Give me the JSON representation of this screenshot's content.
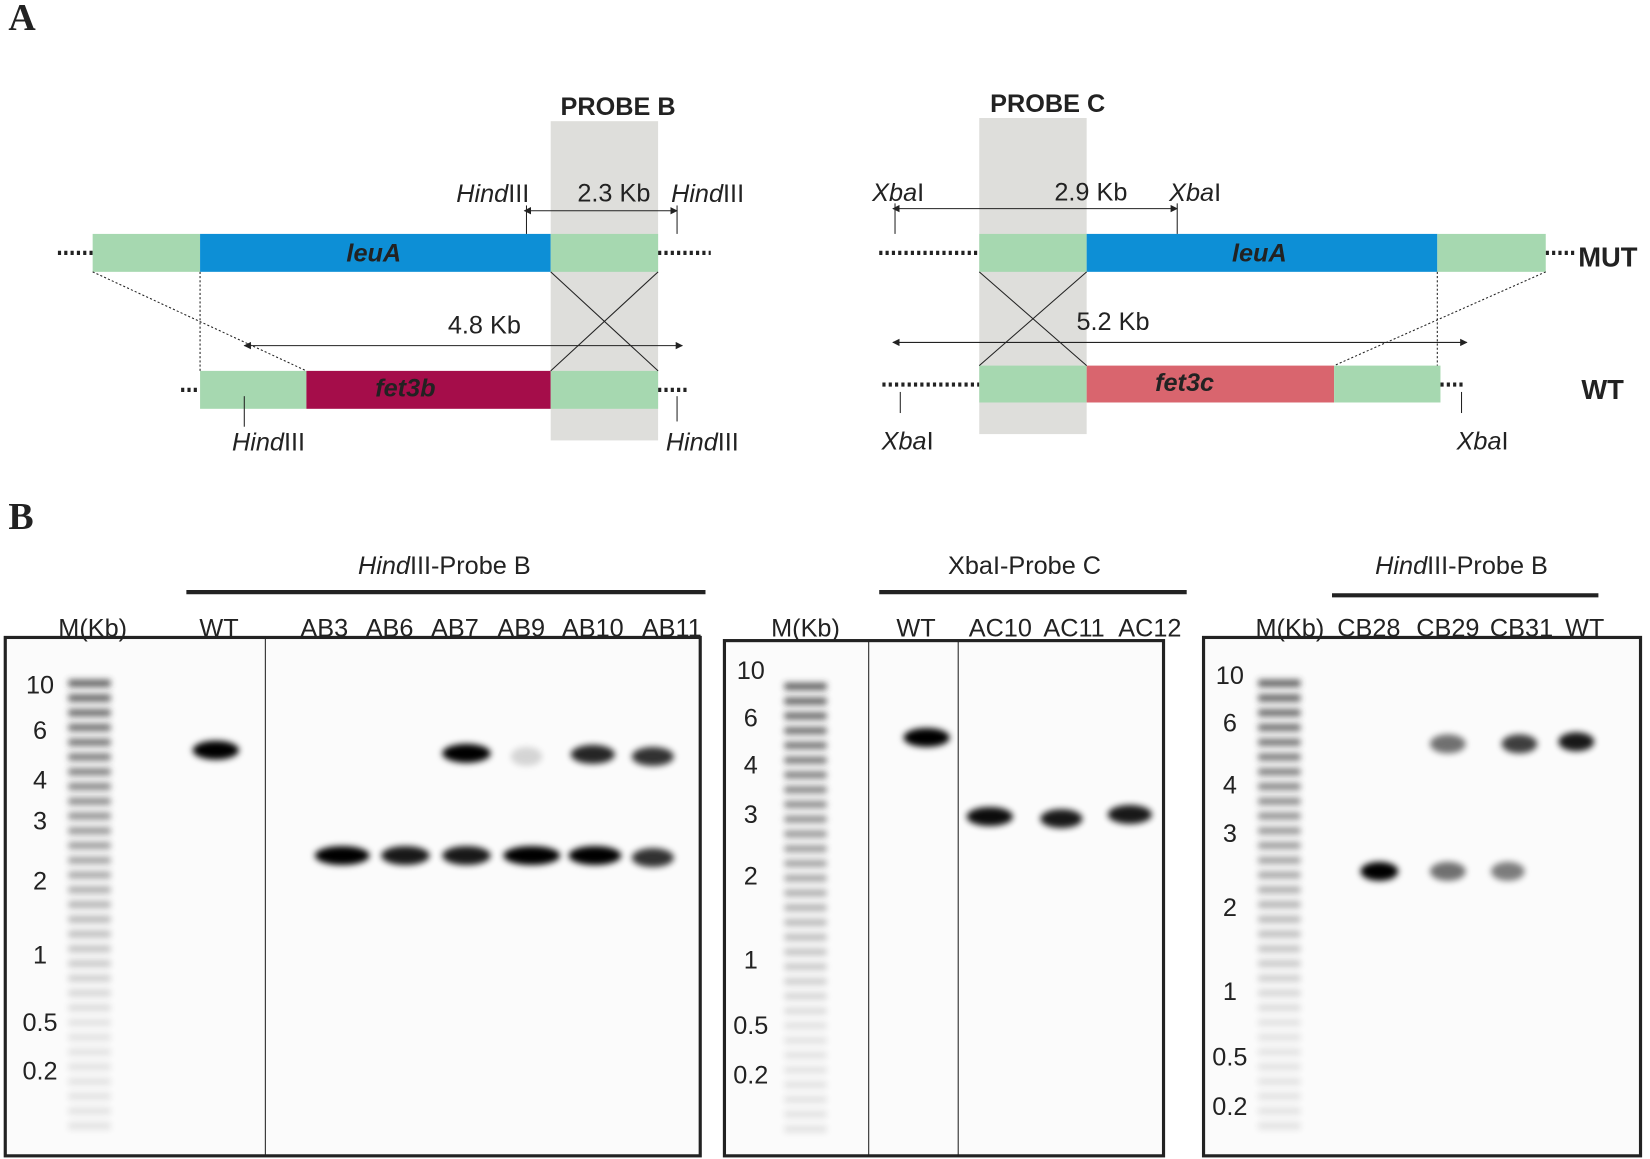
{
  "panel_a": {
    "label": "A",
    "left": {
      "probe": "PROBE B",
      "site": [
        "Hind",
        "III"
      ],
      "short_size": "2.3 Kb",
      "long_size": "4.8 Kb",
      "gene_mut": "leuA",
      "gene_wt": "fet3b"
    },
    "right": {
      "probe": "PROBE C",
      "site": [
        "Xba",
        "I"
      ],
      "short_size": "2.9 Kb",
      "long_size": "5.2 Kb",
      "gene_mut": "leuA",
      "gene_wt": "fet3c"
    },
    "row_labels": [
      "MUT",
      "WT"
    ]
  },
  "panel_b": {
    "label": "B",
    "blots": [
      {
        "title": [
          "Hind",
          "III-Probe B"
        ],
        "marker_header": "M(Kb)",
        "lanes": [
          "WT",
          "AB3",
          "AB6",
          "AB7",
          "AB9",
          "AB10",
          "AB11"
        ],
        "marker_ticks": [
          "10",
          "6",
          "4",
          "3",
          "2",
          "1",
          "0.5",
          "0.2"
        ]
      },
      {
        "title": [
          "XbaI-Probe C"
        ],
        "marker_header": "M(Kb)",
        "lanes": [
          "WT",
          "AC10",
          "AC11",
          "AC12"
        ],
        "marker_ticks": [
          "10",
          "6",
          "4",
          "3",
          "2",
          "1",
          "0.5",
          "0.2"
        ]
      },
      {
        "title": [
          "Hind",
          "III-Probe B"
        ],
        "marker_header": "M(Kb)",
        "lanes": [
          "CB28",
          "CB29",
          "CB31",
          "WT"
        ],
        "marker_ticks": [
          "10",
          "6",
          "4",
          "3",
          "2",
          "1",
          "0.5",
          "0.2"
        ]
      }
    ]
  }
}
